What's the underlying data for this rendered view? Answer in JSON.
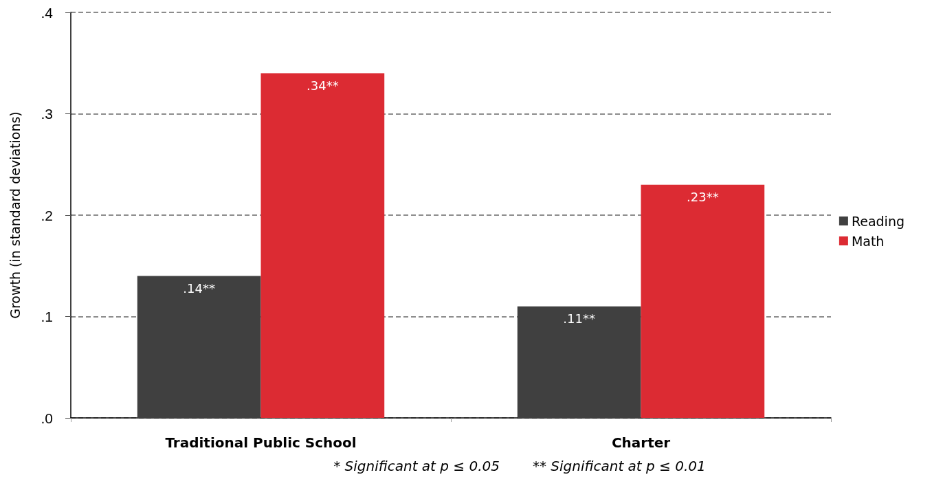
{
  "chart_data": {
    "type": "bar",
    "categories": [
      "Traditional Public School",
      "Charter"
    ],
    "series": [
      {
        "name": "Reading",
        "color": "#404040",
        "values": [
          0.14,
          0.11
        ],
        "value_labels": [
          ".14**",
          ".11**"
        ]
      },
      {
        "name": "Math",
        "color": "#dc2b33",
        "values": [
          0.34,
          0.23
        ],
        "value_labels": [
          ".34**",
          ".23**"
        ]
      }
    ],
    "ylabel": "Growth (in standard deviations)",
    "ylim": [
      0,
      0.4
    ],
    "yticks": [
      {
        "value": 0,
        "label": ".0"
      },
      {
        "value": 0.1,
        "label": ".1"
      },
      {
        "value": 0.2,
        "label": ".2"
      },
      {
        "value": 0.3,
        "label": ".3"
      },
      {
        "value": 0.4,
        "label": ".4"
      }
    ],
    "grid": "y",
    "legend": "right",
    "annotations": [
      "* Significant at p ≤ 0.05",
      "** Significant at p ≤ 0.01"
    ]
  }
}
